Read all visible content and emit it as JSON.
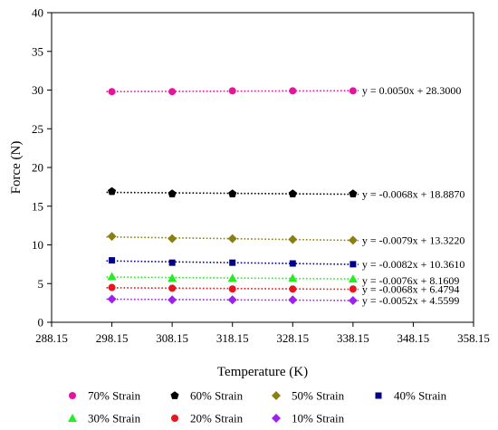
{
  "chart_data": {
    "type": "scatter",
    "title": "",
    "xlabel": "Temperature (K)",
    "ylabel": "Force (N)",
    "xlim": [
      288.15,
      358.15
    ],
    "ylim": [
      0,
      40
    ],
    "xticks": [
      "288.15",
      "298.15",
      "308.15",
      "318.15",
      "328.15",
      "338.15",
      "348.15",
      "358.15"
    ],
    "yticks": [
      "0",
      "5",
      "10",
      "15",
      "20",
      "25",
      "30",
      "35",
      "40"
    ],
    "x": [
      298.15,
      308.15,
      318.15,
      328.15,
      338.15
    ],
    "grid": false,
    "legend_position": "bottom",
    "series": [
      {
        "name": "70% Strain",
        "marker": "circle",
        "color": "#e8139b",
        "values": [
          29.8,
          29.8,
          29.9,
          29.9,
          29.9
        ],
        "trendline": "y = 0.0050x + 28.3000"
      },
      {
        "name": "60% Strain",
        "marker": "pentagon",
        "color": "#000000",
        "values": [
          16.9,
          16.6,
          16.6,
          16.6,
          16.6
        ],
        "trendline": "y = -0.0068x + 18.8870"
      },
      {
        "name": "50% Strain",
        "marker": "diamond",
        "color": "#8a8012",
        "values": [
          11.1,
          10.8,
          10.8,
          10.7,
          10.6
        ],
        "trendline": "y = -0.0079x + 13.3220"
      },
      {
        "name": "40% Strain",
        "marker": "square",
        "color": "#00008b",
        "values": [
          8.0,
          7.7,
          7.7,
          7.6,
          7.5
        ],
        "trendline": "y = -0.0082x + 10.3610"
      },
      {
        "name": "30% Strain",
        "marker": "triangle",
        "color": "#22ee22",
        "values": [
          5.9,
          5.7,
          5.7,
          5.7,
          5.6
        ],
        "trendline": "y = -0.0076x + 8.1609"
      },
      {
        "name": "20% Strain",
        "marker": "circle",
        "color": "#e8141e",
        "values": [
          4.5,
          4.4,
          4.3,
          4.3,
          4.3
        ],
        "trendline": "y = -0.0068x + 6.4794"
      },
      {
        "name": "10% Strain",
        "marker": "diamond",
        "color": "#9b21f0",
        "values": [
          3.0,
          2.9,
          2.9,
          2.9,
          2.8
        ],
        "trendline": "y = -0.0052x + 4.5599"
      }
    ]
  }
}
